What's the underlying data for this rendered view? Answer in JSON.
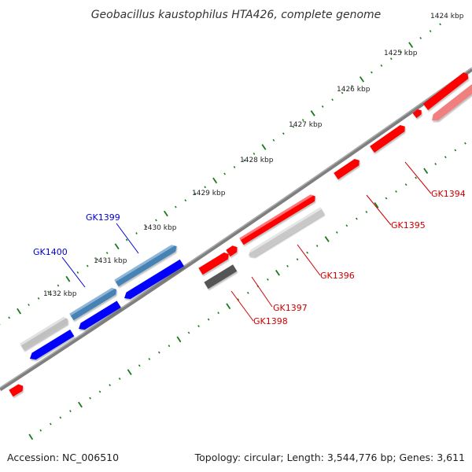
{
  "title": "Geobacillus kaustophilus HTA426, complete genome",
  "footer": {
    "accession": "Accession: NC_006510",
    "summary": "Topology: circular; Length: 3,544,776 bp; Genes: 3,611"
  },
  "colors": {
    "backbone": "#7f7f7f",
    "tick": "#1a7a1a",
    "forward_red": "#ff0000",
    "reverse_blue": "#0000ff",
    "highlight_blue": "#4682b4",
    "light_red": "#f08080",
    "light_grey": "#c8c8c8",
    "dark_grey": "#555555",
    "label_red": "#cc0000",
    "label_blue": "#0000cc"
  },
  "scale_labels": [
    "1424 kbp",
    "1425 kbp",
    "1426 kbp",
    "1427 kbp",
    "1428 kbp",
    "1429 kbp",
    "1430 kbp",
    "1431 kbp",
    "1432 kbp"
  ],
  "gene_labels": [
    {
      "id": "GK1394",
      "text": "GK1394",
      "color": "red"
    },
    {
      "id": "GK1395",
      "text": "GK1395",
      "color": "red"
    },
    {
      "id": "GK1396",
      "text": "GK1396",
      "color": "red"
    },
    {
      "id": "GK1397",
      "text": "GK1397",
      "color": "red"
    },
    {
      "id": "GK1398",
      "text": "GK1398",
      "color": "red"
    },
    {
      "id": "GK1399",
      "text": "GK1399",
      "color": "blue"
    },
    {
      "id": "GK1400",
      "text": "GK1400",
      "color": "blue"
    }
  ]
}
